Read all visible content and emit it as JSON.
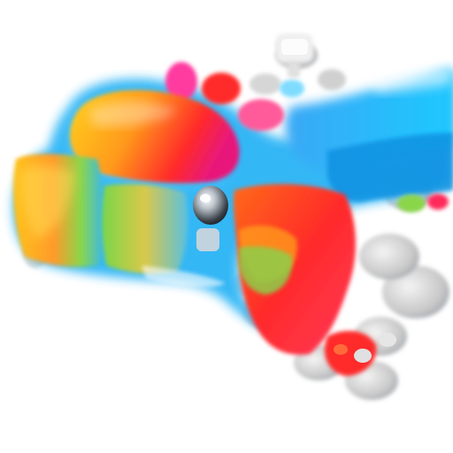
{
  "image": {
    "subject": "abstract-iridescent-fluid-sculpture",
    "background_color": "#ffffff",
    "palette": [
      "#1ec8ff",
      "#3aa8f5",
      "#ffd21a",
      "#ff8a1a",
      "#ff2a2a",
      "#e8197a",
      "#7ad64a",
      "#c8c8c8",
      "#9aa4b0"
    ]
  }
}
